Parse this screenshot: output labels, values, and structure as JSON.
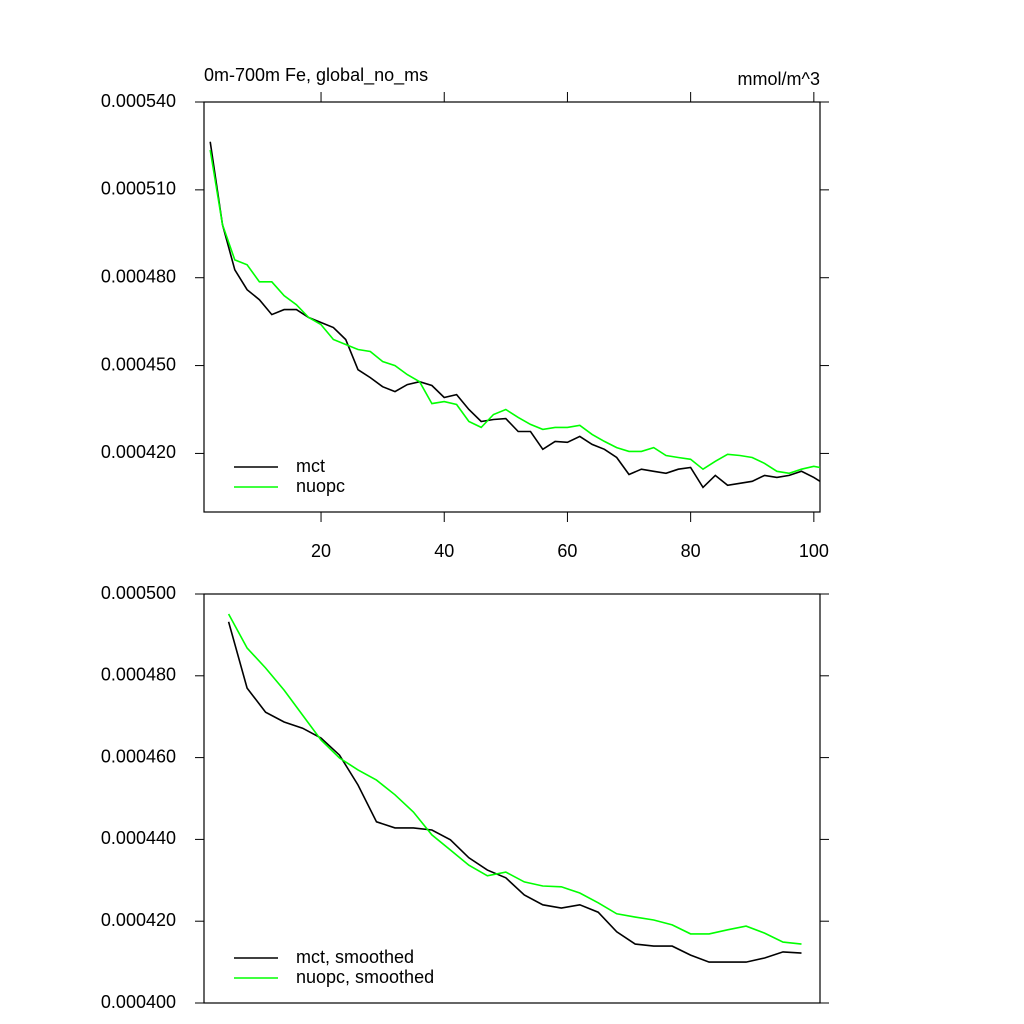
{
  "chart_data": [
    {
      "type": "line",
      "title": "0m-700m Fe, global_no_ms",
      "units": "mmol/m^3",
      "xlim": [
        1,
        101
      ],
      "xticks": [
        20,
        40,
        60,
        80,
        100
      ],
      "ylim": [
        0.0004,
        0.00054
      ],
      "yticks": [
        {
          "value": 0.00042,
          "label": "0.000420"
        },
        {
          "value": 0.00045,
          "label": "0.000450"
        },
        {
          "value": 0.00048,
          "label": "0.000480"
        },
        {
          "value": 0.00051,
          "label": "0.000510"
        },
        {
          "value": 0.00054,
          "label": "0.000540"
        }
      ],
      "legend": "lower left",
      "x": [
        2,
        4,
        6,
        8,
        10,
        12,
        14,
        16,
        18,
        20,
        22,
        24,
        26,
        28,
        30,
        32,
        34,
        36,
        38,
        40,
        42,
        44,
        46,
        48,
        50,
        52,
        54,
        56,
        58,
        60,
        62,
        64,
        66,
        68,
        70,
        72,
        74,
        76,
        78,
        80,
        82,
        84,
        86,
        88,
        90,
        92,
        94,
        96,
        98,
        100,
        101
      ],
      "series": [
        {
          "name": "mct",
          "color": "#000000",
          "values": [
            0.0005264,
            0.0004981,
            0.0004827,
            0.0004759,
            0.0004725,
            0.0004674,
            0.0004691,
            0.0004691,
            0.0004664,
            0.0004647,
            0.000463,
            0.0004589,
            0.0004486,
            0.0004459,
            0.0004428,
            0.0004411,
            0.0004435,
            0.0004445,
            0.0004432,
            0.0004391,
            0.0004401,
            0.000435,
            0.0004309,
            0.0004316,
            0.0004319,
            0.0004275,
            0.0004275,
            0.0004214,
            0.0004241,
            0.0004238,
            0.0004258,
            0.0004231,
            0.0004214,
            0.0004186,
            0.0004128,
            0.0004146,
            0.0004139,
            0.0004132,
            0.0004146,
            0.0004152,
            0.0004084,
            0.0004125,
            0.0004091,
            0.0004098,
            0.0004105,
            0.0004125,
            0.0004118,
            0.0004125,
            0.0004139,
            0.0004118,
            0.0004105
          ]
        },
        {
          "name": "nuopc",
          "color": "#00ff00",
          "values": [
            0.0005236,
            0.0004981,
            0.0004861,
            0.0004844,
            0.0004786,
            0.0004786,
            0.0004739,
            0.0004708,
            0.0004664,
            0.000464,
            0.0004589,
            0.0004572,
            0.0004555,
            0.0004548,
            0.0004514,
            0.00045,
            0.0004469,
            0.0004445,
            0.000437,
            0.0004377,
            0.0004367,
            0.0004309,
            0.0004289,
            0.0004333,
            0.000435,
            0.0004323,
            0.0004299,
            0.0004282,
            0.0004289,
            0.0004289,
            0.0004296,
            0.0004265,
            0.0004241,
            0.000422,
            0.0004207,
            0.0004207,
            0.000422,
            0.0004193,
            0.0004186,
            0.000418,
            0.0004146,
            0.0004173,
            0.0004197,
            0.0004193,
            0.0004186,
            0.0004166,
            0.0004139,
            0.0004132,
            0.0004146,
            0.0004156,
            0.0004152
          ]
        }
      ]
    },
    {
      "type": "line",
      "xlim": [
        1,
        101
      ],
      "ylim": [
        0.0004,
        0.0005
      ],
      "yticks": [
        {
          "value": 0.0004,
          "label": "0.000400"
        },
        {
          "value": 0.00042,
          "label": "0.000420"
        },
        {
          "value": 0.00044,
          "label": "0.000440"
        },
        {
          "value": 0.00046,
          "label": "0.000460"
        },
        {
          "value": 0.00048,
          "label": "0.000480"
        },
        {
          "value": 0.0005,
          "label": "0.000500"
        }
      ],
      "legend": "lower left",
      "x": [
        5,
        8,
        11,
        14,
        17,
        20,
        23,
        26,
        29,
        32,
        35,
        38,
        41,
        44,
        47,
        50,
        53,
        56,
        59,
        62,
        65,
        68,
        71,
        74,
        77,
        80,
        83,
        86,
        89,
        92,
        95,
        98
      ],
      "series": [
        {
          "name": "mct, smoothed",
          "color": "#000000",
          "values": [
            0.0004932,
            0.000477,
            0.0004711,
            0.0004687,
            0.0004672,
            0.0004648,
            0.0004606,
            0.0004533,
            0.0004443,
            0.0004428,
            0.0004428,
            0.0004423,
            0.0004399,
            0.0004355,
            0.0004325,
            0.0004306,
            0.0004264,
            0.000424,
            0.0004232,
            0.000424,
            0.0004222,
            0.0004174,
            0.0004144,
            0.0004139,
            0.0004139,
            0.0004117,
            0.00041,
            0.00041,
            0.00041,
            0.000411,
            0.0004125,
            0.0004122
          ]
        },
        {
          "name": "nuopc, smoothed",
          "color": "#00ff00",
          "values": [
            0.0004951,
            0.0004868,
            0.0004819,
            0.0004765,
            0.0004704,
            0.0004643,
            0.0004599,
            0.000457,
            0.0004545,
            0.0004509,
            0.0004467,
            0.0004411,
            0.0004374,
            0.0004337,
            0.0004311,
            0.000432,
            0.0004296,
            0.0004286,
            0.0004284,
            0.0004269,
            0.0004245,
            0.0004218,
            0.000421,
            0.0004203,
            0.0004191,
            0.0004169,
            0.0004169,
            0.0004179,
            0.0004188,
            0.0004171,
            0.0004149,
            0.0004144
          ]
        }
      ]
    }
  ]
}
